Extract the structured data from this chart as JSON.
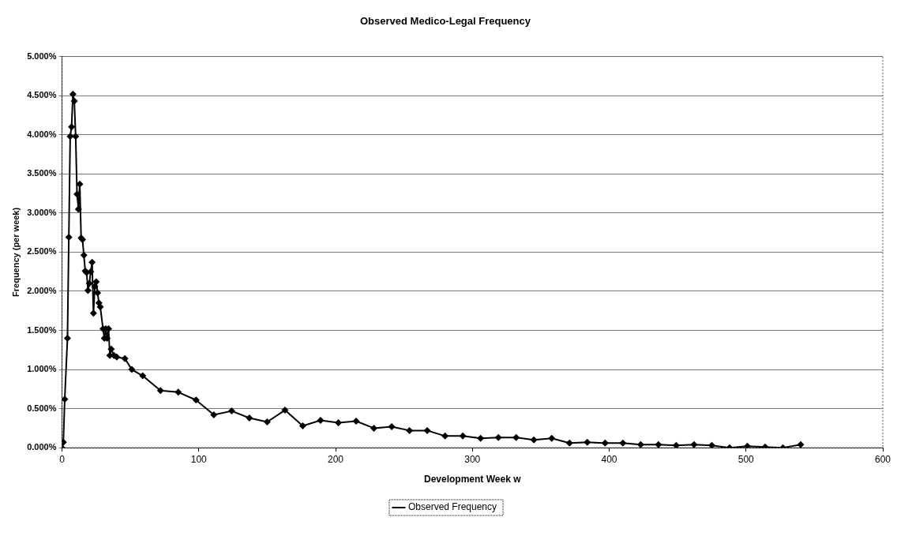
{
  "chart_data": {
    "type": "line",
    "title": "Observed Medico-Legal Frequency",
    "xlabel": "Development Week w",
    "ylabel": "Frequency (per week)",
    "xlim": [
      0,
      600
    ],
    "xticks": [
      0,
      100,
      200,
      300,
      400,
      500,
      600
    ],
    "ylim": [
      0,
      5
    ],
    "yticks": [
      {
        "value": 0,
        "label": "0.000%"
      },
      {
        "value": 0.5,
        "label": "0.500%"
      },
      {
        "value": 1,
        "label": "1.000%"
      },
      {
        "value": 1.5,
        "label": "1.500%"
      },
      {
        "value": 2,
        "label": "2.000%"
      },
      {
        "value": 2.5,
        "label": "2.500%"
      },
      {
        "value": 3,
        "label": "3.000%"
      },
      {
        "value": 3.5,
        "label": "3.500%"
      },
      {
        "value": 4,
        "label": "4.000%"
      },
      {
        "value": 4.5,
        "label": "4.500%"
      },
      {
        "value": 5,
        "label": "5.000%"
      }
    ],
    "grid": "y",
    "legend": "bottom",
    "marker": "diamond",
    "line_style": "solid",
    "x": [
      0,
      1,
      2,
      4,
      5,
      6,
      7,
      8,
      9,
      10,
      11,
      12,
      13,
      14,
      15,
      16,
      17,
      18,
      19,
      20,
      21,
      22,
      23,
      24,
      25,
      26,
      27,
      28,
      30,
      31,
      32,
      33,
      34,
      35,
      36,
      38,
      40,
      46,
      51,
      59,
      72,
      85,
      98,
      111,
      124,
      137,
      150,
      163,
      176,
      189,
      202,
      215,
      228,
      241,
      254,
      267,
      280,
      293,
      306,
      319,
      332,
      345,
      358,
      371,
      384,
      397,
      410,
      423,
      436,
      449,
      462,
      475,
      488,
      501,
      514,
      527,
      540
    ],
    "series": [
      {
        "name": "Observed Frequency",
        "color": "#000000",
        "values": [
          0,
          0.07,
          0.62,
          1.4,
          2.69,
          3.98,
          4.1,
          4.52,
          4.43,
          3.98,
          3.24,
          3.05,
          3.37,
          2.68,
          2.66,
          2.46,
          2.26,
          2.24,
          2.01,
          2.1,
          2.25,
          2.37,
          1.72,
          2.06,
          2.12,
          1.98,
          1.85,
          1.8,
          1.52,
          1.4,
          1.52,
          1.4,
          1.52,
          1.18,
          1.26,
          1.18,
          1.16,
          1.14,
          1.0,
          0.92,
          0.73,
          0.71,
          0.61,
          0.42,
          0.47,
          0.38,
          0.33,
          0.48,
          0.28,
          0.35,
          0.32,
          0.34,
          0.25,
          0.27,
          0.22,
          0.22,
          0.15,
          0.15,
          0.12,
          0.13,
          0.13,
          0.1,
          0.12,
          0.06,
          0.07,
          0.06,
          0.06,
          0.04,
          0.04,
          0.03,
          0.04,
          0.03,
          0.0,
          0.02,
          0.01,
          0.0,
          0.04
        ]
      }
    ]
  }
}
